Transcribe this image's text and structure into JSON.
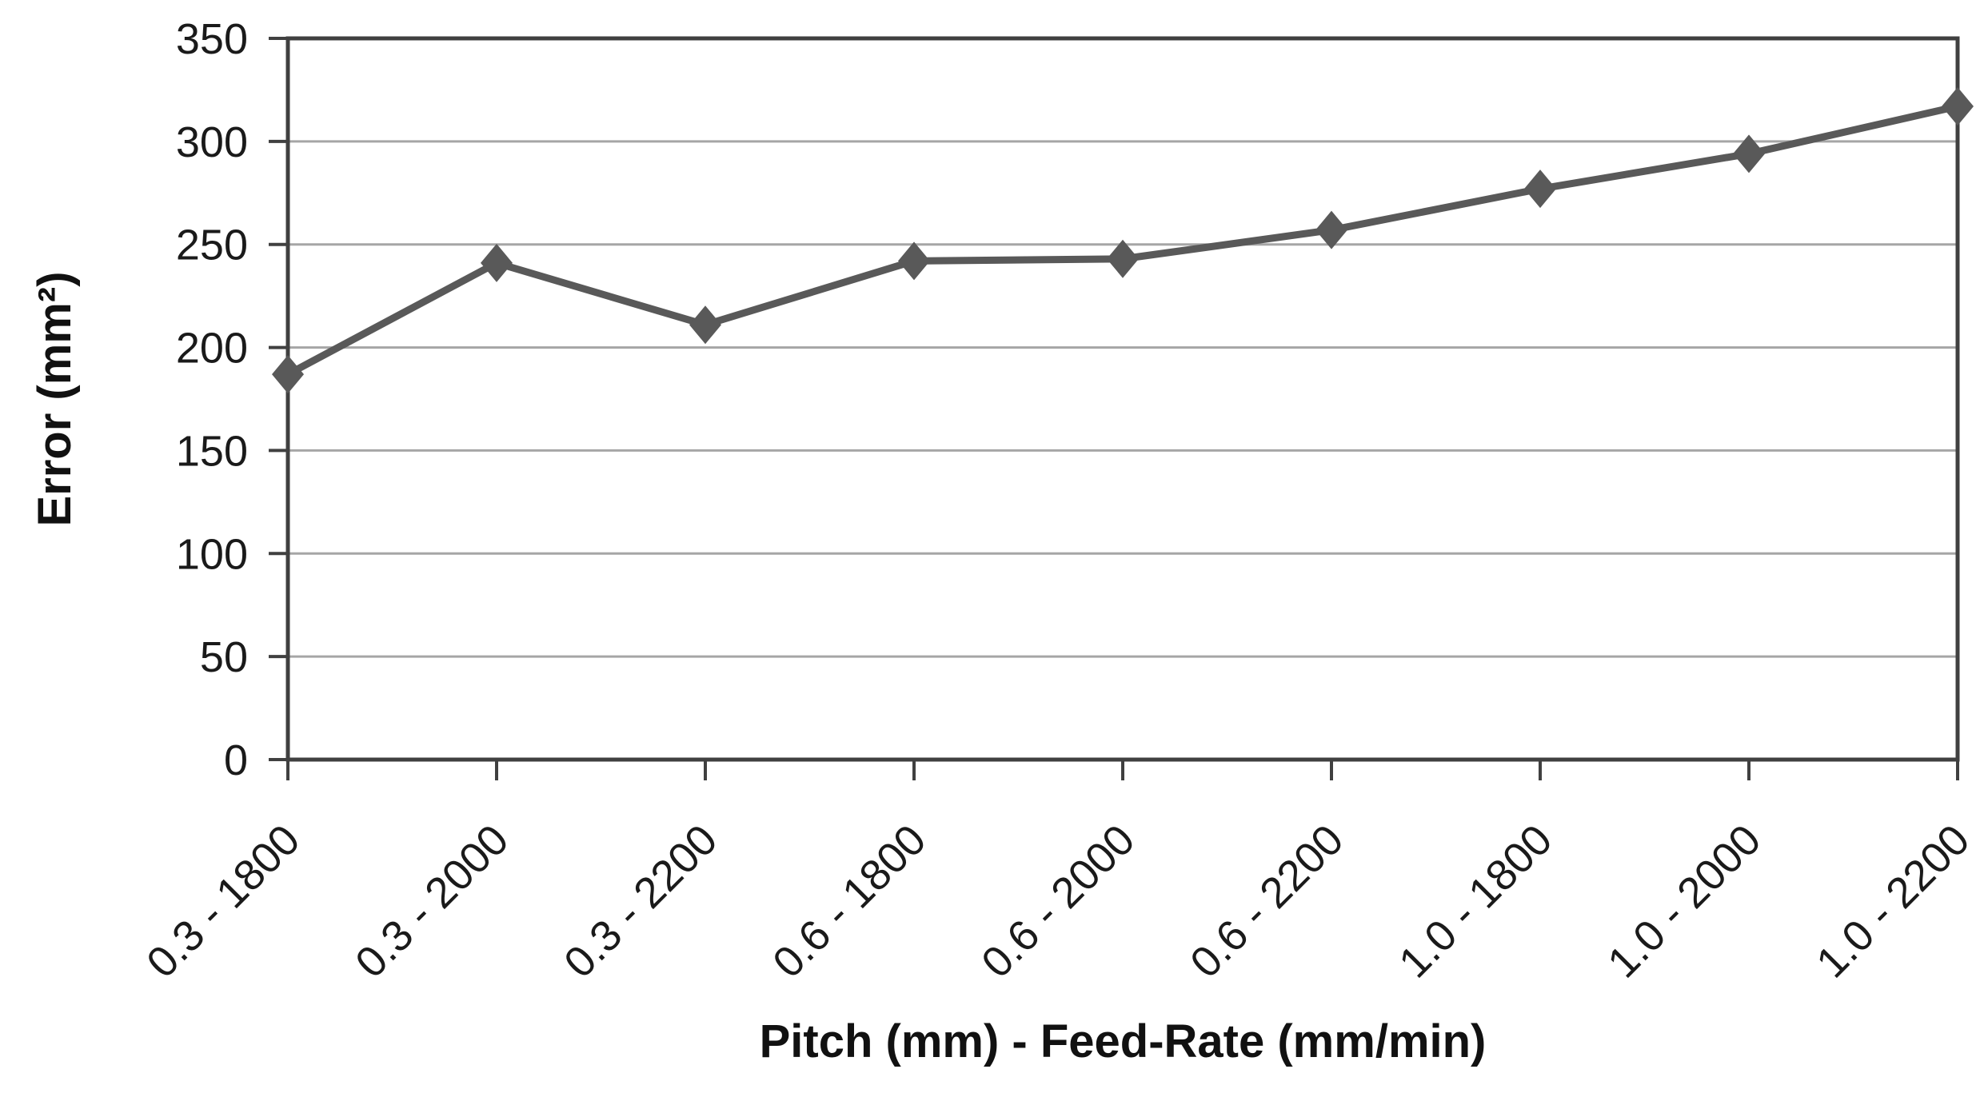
{
  "chart_data": {
    "type": "line",
    "title": "",
    "categories": [
      "0.3 - 1800",
      "0.3 - 2000",
      "0.3 - 2200",
      "0.6 - 1800",
      "0.6 - 2000",
      "0.6 - 2200",
      "1.0 - 1800",
      "1.0 - 2000",
      "1.0 - 2200"
    ],
    "series": [
      {
        "values": [
          187,
          241,
          211,
          242,
          243,
          257,
          277,
          294,
          317
        ]
      }
    ],
    "xlabel": "Pitch (mm) - Feed-Rate (mm/min)",
    "ylabel": "Error (mm²)",
    "ylim": [
      0,
      350
    ],
    "yticks": [
      0,
      50,
      100,
      150,
      200,
      250,
      300,
      350
    ],
    "grid": true,
    "legend": "none",
    "marker": "diamond",
    "x_tick_label_rotation": -45,
    "colors": {
      "series": "#595959",
      "gridline": "#A6A6A6",
      "axis": "#404040",
      "text": "#1a1a1a",
      "background": "#FFFFFF"
    }
  }
}
